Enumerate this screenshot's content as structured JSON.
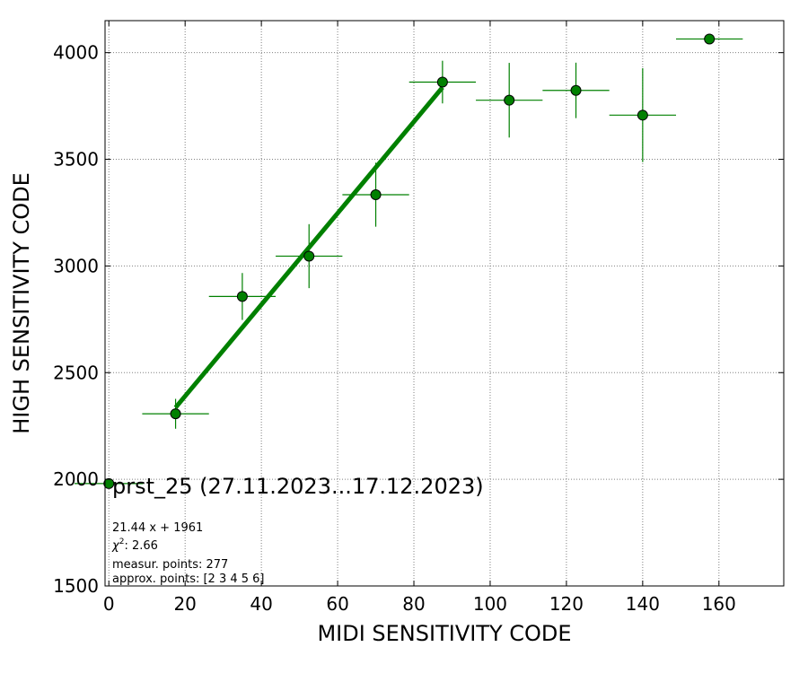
{
  "chart_data": {
    "type": "scatter",
    "xlabel": "MIDI SENSITIVITY CODE",
    "ylabel": "HIGH SENSITIVITY CODE",
    "xlim": [
      -1,
      177
    ],
    "ylim": [
      1500,
      4150
    ],
    "xticks": [
      0,
      20,
      40,
      60,
      80,
      100,
      120,
      140,
      160
    ],
    "yticks": [
      1500,
      2000,
      2500,
      3000,
      3500,
      4000
    ],
    "grid": true,
    "grid_style": "dotted",
    "marker_color": "#008000",
    "errorbar_color": "#008000",
    "fit_color": "#008000",
    "points": [
      {
        "x": 0,
        "y": 1980,
        "xerr": 9,
        "yerr": 0
      },
      {
        "x": 17.5,
        "y": 2307,
        "xerr": 8.75,
        "yerr": 70
      },
      {
        "x": 35,
        "y": 2857,
        "xerr": 8.75,
        "yerr": 110
      },
      {
        "x": 52.5,
        "y": 3046,
        "xerr": 8.75,
        "yerr": 150
      },
      {
        "x": 70,
        "y": 3334,
        "xerr": 8.75,
        "yerr": 150
      },
      {
        "x": 87.5,
        "y": 3862,
        "xerr": 8.75,
        "yerr": 100
      },
      {
        "x": 105,
        "y": 3777,
        "xerr": 8.75,
        "yerr": 175
      },
      {
        "x": 122.5,
        "y": 3823,
        "xerr": 8.75,
        "yerr": 130
      },
      {
        "x": 140,
        "y": 3707,
        "xerr": 8.75,
        "yerr": 220
      },
      {
        "x": 157.5,
        "y": 4064,
        "xerr": 8.75,
        "yerr": 0
      }
    ],
    "fit": {
      "slope": 21.44,
      "intercept": 1961,
      "x_range": [
        17.5,
        87.5
      ]
    },
    "legend": {
      "title": "prst_25 (27.11.2023...17.12.2023)",
      "fit_text": "21.44 x + 1961",
      "chi2_label": "χ",
      "chi2_sup": "2",
      "chi2_value": ": 2.66",
      "measured_points": "measur. points: 277",
      "approx_points": "approx. points: [2 3 4 5 6]"
    }
  }
}
